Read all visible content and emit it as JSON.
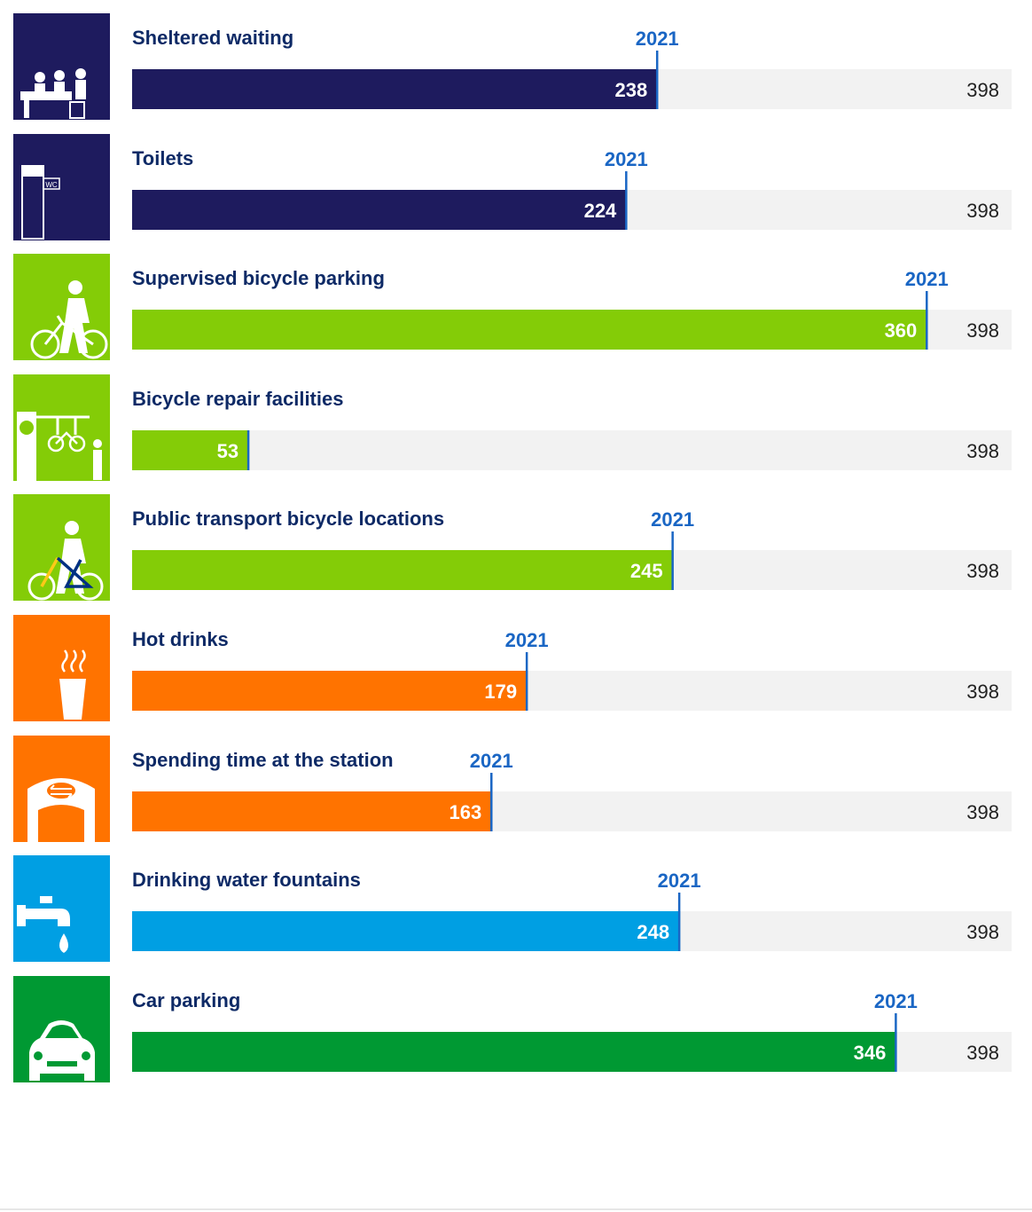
{
  "chart_data": {
    "type": "bar",
    "orientation": "horizontal",
    "categories": [
      "Sheltered waiting",
      "Toilets",
      "Supervised bicycle parking",
      "Bicycle repair facilities",
      "Public transport bicycle locations",
      "Hot drinks",
      "Spending time at the station",
      "Drinking water fountains",
      "Car parking"
    ],
    "values": [
      238,
      224,
      360,
      53,
      245,
      179,
      163,
      248,
      346
    ],
    "total_label": "398",
    "xlim": [
      0,
      398
    ],
    "marker_label": "2021",
    "marker_values": [
      238,
      224,
      360,
      53,
      245,
      179,
      163,
      248,
      346
    ],
    "marker_shown": [
      true,
      true,
      true,
      false,
      true,
      true,
      true,
      true,
      true
    ],
    "icons": [
      "people-waiting-icon",
      "toilet-icon",
      "person-with-bicycle-icon",
      "bicycle-repair-icon",
      "ov-bike-icon",
      "hot-drink-icon",
      "station-building-icon",
      "water-tap-icon",
      "car-icon"
    ],
    "bar_colors": [
      "#1e1b5e",
      "#1e1b5e",
      "#84cc07",
      "#84cc07",
      "#84cc07",
      "#ff7300",
      "#ff7300",
      "#009fe3",
      "#009933"
    ],
    "track_color": "#f2f2f2",
    "marker_color": "#1a66c4",
    "label_color": "#0e2a66"
  }
}
